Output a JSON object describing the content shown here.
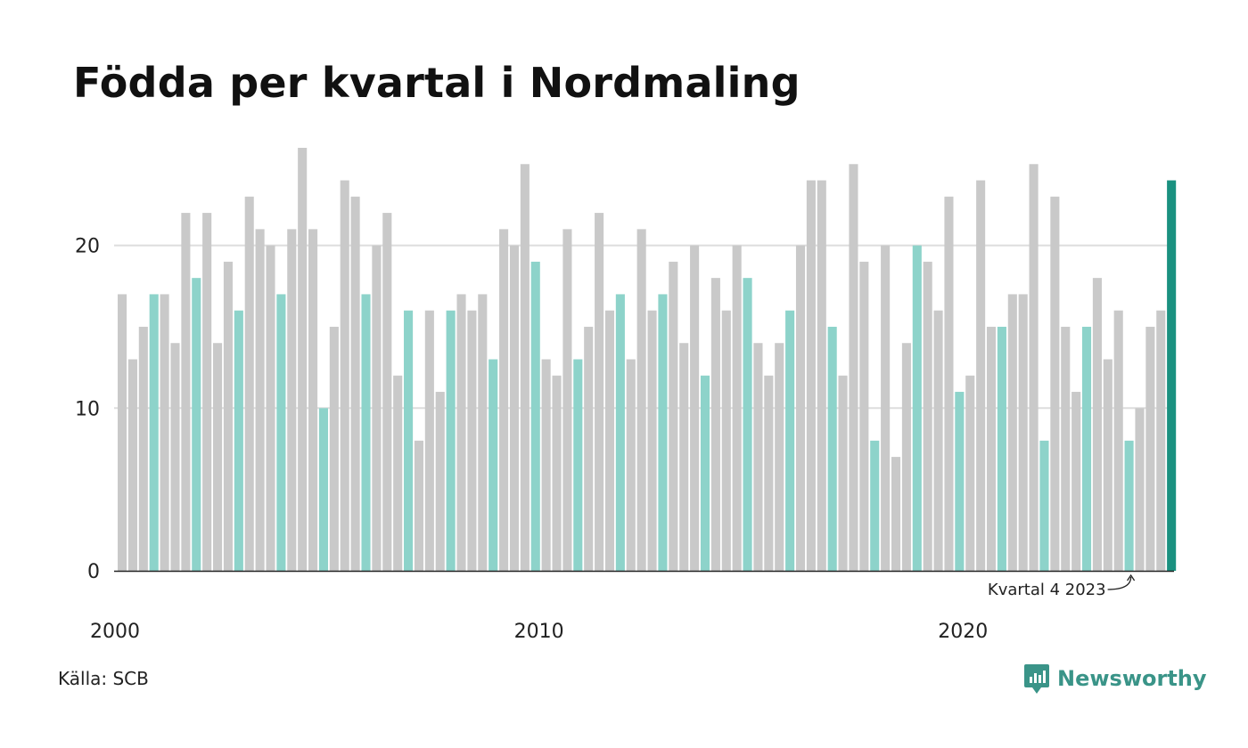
{
  "title": "Födda per kvartal i Nordmaling",
  "source": "Källa: SCB",
  "brand": {
    "name": "Newsworthy",
    "icon": "newsworthy-logo-icon",
    "color": "#3a9488"
  },
  "colors": {
    "default": "#c9c9c9",
    "q4": "#8dd3ca",
    "highlight": "#1a9180",
    "grid": "#dddddd",
    "axis": "#222222"
  },
  "chart_data": {
    "type": "bar",
    "x_tick_labels": [
      "2000",
      "2010",
      "2020"
    ],
    "y_ticks": [
      0,
      10,
      20
    ],
    "ylim": [
      0,
      26
    ],
    "grid": true,
    "annotation": {
      "text": "Kvartal 4 2023",
      "target": "2023 Q4"
    },
    "categories": [
      "2000 Q1",
      "2000 Q2",
      "2000 Q3",
      "2000 Q4",
      "2001 Q1",
      "2001 Q2",
      "2001 Q3",
      "2001 Q4",
      "2002 Q1",
      "2002 Q2",
      "2002 Q3",
      "2002 Q4",
      "2003 Q1",
      "2003 Q2",
      "2003 Q3",
      "2003 Q4",
      "2004 Q1",
      "2004 Q2",
      "2004 Q3",
      "2004 Q4",
      "2005 Q1",
      "2005 Q2",
      "2005 Q3",
      "2005 Q4",
      "2006 Q1",
      "2006 Q2",
      "2006 Q3",
      "2006 Q4",
      "2007 Q1",
      "2007 Q2",
      "2007 Q3",
      "2007 Q4",
      "2008 Q1",
      "2008 Q2",
      "2008 Q3",
      "2008 Q4",
      "2009 Q1",
      "2009 Q2",
      "2009 Q3",
      "2009 Q4",
      "2010 Q1",
      "2010 Q2",
      "2010 Q3",
      "2010 Q4",
      "2011 Q1",
      "2011 Q2",
      "2011 Q3",
      "2011 Q4",
      "2012 Q1",
      "2012 Q2",
      "2012 Q3",
      "2012 Q4",
      "2013 Q1",
      "2013 Q2",
      "2013 Q3",
      "2013 Q4",
      "2014 Q1",
      "2014 Q2",
      "2014 Q3",
      "2014 Q4",
      "2015 Q1",
      "2015 Q2",
      "2015 Q3",
      "2015 Q4",
      "2016 Q1",
      "2016 Q2",
      "2016 Q3",
      "2016 Q4",
      "2017 Q1",
      "2017 Q2",
      "2017 Q3",
      "2017 Q4",
      "2018 Q1",
      "2018 Q2",
      "2018 Q3",
      "2018 Q4",
      "2019 Q1",
      "2019 Q2",
      "2019 Q3",
      "2019 Q4",
      "2020 Q1",
      "2020 Q2",
      "2020 Q3",
      "2020 Q4",
      "2021 Q1",
      "2021 Q2",
      "2021 Q3",
      "2021 Q4",
      "2022 Q1",
      "2022 Q2",
      "2022 Q3",
      "2022 Q4",
      "2023 Q1",
      "2023 Q2",
      "2023 Q3",
      "2023 Q4",
      "2024 Q1",
      "2024 Q2",
      "2024 Q3",
      "2024 Q4"
    ],
    "values": [
      17,
      13,
      15,
      17,
      17,
      14,
      22,
      18,
      22,
      14,
      19,
      16,
      23,
      21,
      20,
      17,
      21,
      26,
      21,
      10,
      15,
      24,
      23,
      17,
      20,
      22,
      12,
      16,
      8,
      16,
      11,
      16,
      17,
      16,
      17,
      13,
      21,
      20,
      25,
      19,
      13,
      12,
      21,
      13,
      15,
      22,
      16,
      17,
      13,
      21,
      16,
      17,
      19,
      14,
      20,
      12,
      18,
      16,
      20,
      18,
      14,
      12,
      14,
      16,
      20,
      24,
      24,
      15,
      12,
      25,
      19,
      8,
      20,
      7,
      14,
      20,
      19,
      16,
      23,
      11,
      12,
      24,
      15,
      15,
      17,
      17,
      25,
      8,
      23,
      15,
      11,
      15,
      18,
      13,
      16,
      8,
      10,
      15,
      16,
      24
    ]
  }
}
